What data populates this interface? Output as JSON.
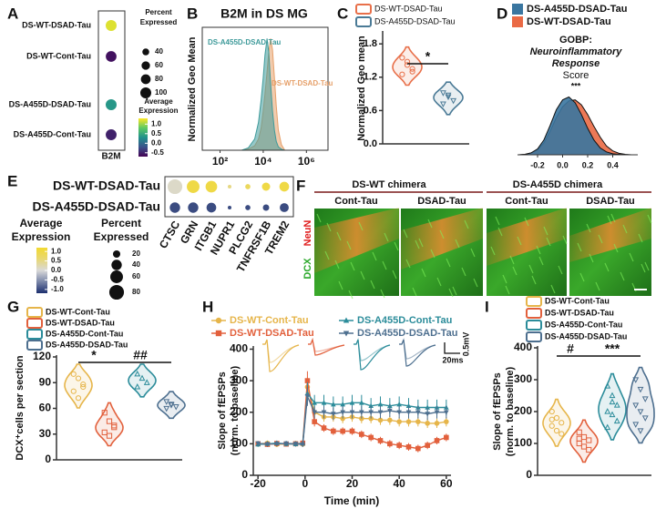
{
  "chart_data": [
    {
      "type": "dot",
      "label": "A",
      "rows": [
        "DS-WT-DSAD-Tau",
        "DS-WT-Cont-Tau",
        "DS-A455D-DSAD-Tau",
        "DS-A455D-Cont-Tau"
      ],
      "categories": [
        "B2M"
      ],
      "values": [
        [
          1.2
        ],
        [
          -0.6
        ],
        [
          0.35
        ],
        [
          -0.5
        ]
      ],
      "sizes": [
        [
          100
        ],
        [
          96
        ],
        [
          100
        ],
        [
          98
        ]
      ],
      "colorscale": [
        "#440154",
        "#3b528b",
        "#21918c",
        "#5ec962",
        "#fde725"
      ],
      "clim": [
        -0.7,
        1.3
      ],
      "color_title": [
        "Average",
        "Expression"
      ],
      "color_ticks": [
        {
          "value": 1,
          "label": "1.0"
        },
        0.5,
        {
          "value": 0,
          "label": "0.0"
        },
        -0.5
      ],
      "size_title": [
        "Percent",
        "Expressed"
      ],
      "size_ticks": [
        40,
        60,
        80,
        100
      ],
      "size_lim": [
        0,
        100
      ]
    },
    {
      "type": "area",
      "label": "B",
      "title": "B2M in DS MG",
      "ylabel": "Normalized Geo Mean",
      "log_x": true,
      "legend": "inside",
      "x": [
        1000,
        2000,
        4000,
        6000,
        8000,
        10000,
        12000,
        15000,
        18000,
        22000,
        27000,
        33000,
        40000,
        50000,
        70000,
        100000
      ],
      "xlim": [
        15,
        10000000
      ],
      "xticks": [
        {
          "value": 100,
          "label": "10²"
        },
        {
          "value": 10000,
          "label": "10⁴"
        },
        {
          "value": 1000000,
          "label": "10⁶"
        }
      ],
      "ylim": [
        0,
        110
      ],
      "series": [
        {
          "name": "DS-A455D-DSAD-Tau",
          "color": "#3e9a9a",
          "values": [
            0,
            2,
            10,
            25,
            45,
            65,
            85,
            100,
            88,
            60,
            35,
            18,
            8,
            3,
            1,
            0
          ]
        },
        {
          "name": "DS-WT-DSAD-Tau",
          "color": "#e6a06a",
          "values": [
            0,
            1,
            4,
            10,
            20,
            35,
            50,
            70,
            88,
            100,
            90,
            65,
            40,
            18,
            5,
            0
          ]
        }
      ]
    },
    {
      "type": "violin",
      "label": "C",
      "ylabel": "Normalized Geo mean",
      "ylim": [
        0,
        2
      ],
      "yticks": [
        {
          "value": 0,
          "label": "0.0"
        },
        0.6,
        1.2,
        1.8
      ],
      "annotations": [
        "*"
      ],
      "series": [
        {
          "name": "DS-WT-DSAD-Tau",
          "color": "#e8704a",
          "marker": "circle",
          "values": [
            1.55,
            1.42,
            1.3,
            1.25,
            1.48,
            1.35
          ]
        },
        {
          "name": "DS-A455D-DSAD-Tau",
          "color": "#4a7a96",
          "marker": "triangle-down",
          "values": [
            0.92,
            0.85,
            0.78,
            0.72,
            0.88
          ]
        }
      ]
    },
    {
      "type": "area",
      "label": "D",
      "title": [
        "GOBP:",
        "Neuroinflammatory",
        "Response"
      ],
      "subtitle": "Score",
      "annotations": [
        "***"
      ],
      "log_x": false,
      "legend": "top",
      "x": [
        -0.35,
        -0.3,
        -0.25,
        -0.2,
        -0.15,
        -0.1,
        -0.05,
        0,
        0.05,
        0.1,
        0.15,
        0.2,
        0.25,
        0.3,
        0.35,
        0.4,
        0.45,
        0.5,
        0.55
      ],
      "xlim": [
        -0.36,
        0.6
      ],
      "xticks": [
        -0.2,
        {
          "value": 0,
          "label": "0.0"
        },
        0.2,
        0.4
      ],
      "ylim": [
        0,
        6.5
      ],
      "series": [
        {
          "name": "DS-A455D-DSAD-Tau",
          "color": "#3a76a0",
          "values": [
            0,
            0.05,
            0.2,
            0.6,
            1.5,
            3.0,
            4.6,
            5.6,
            5.9,
            5.3,
            4.1,
            2.7,
            1.5,
            0.7,
            0.3,
            0.1,
            0.05,
            0,
            0
          ]
        },
        {
          "name": "DS-WT-DSAD-Tau",
          "color": "#ea6a45",
          "values": [
            0,
            0.05,
            0.2,
            0.5,
            1.2,
            2.4,
            3.8,
            4.9,
            5.5,
            5.6,
            5.1,
            4.1,
            2.9,
            1.8,
            0.9,
            0.4,
            0.15,
            0.05,
            0
          ]
        }
      ]
    },
    {
      "type": "dot",
      "label": "E",
      "rows": [
        "DS-WT-DSAD-Tau",
        "DS-A455D-DSAD-Tau"
      ],
      "categories": [
        "CTSC",
        "GRN",
        "ITGB1",
        "NUPR1",
        "PLCG2",
        "TNFRSF1B",
        "TREM2"
      ],
      "values": [
        [
          0.1,
          1.0,
          1.0,
          0.5,
          0.8,
          1.0,
          1.0
        ],
        [
          -1.0,
          -1.0,
          -1.0,
          -1.0,
          -1.0,
          -1.0,
          -1.0
        ]
      ],
      "sizes": [
        [
          80,
          60,
          50,
          5,
          10,
          25,
          35
        ],
        [
          40,
          40,
          35,
          5,
          10,
          15,
          30
        ]
      ],
      "colorscale": [
        "#1c2f6e",
        "#7a86a8",
        "#d9d9d9",
        "#e8d873",
        "#f2d930"
      ],
      "clim": [
        -1.2,
        1.2
      ],
      "color_title": [
        "Average",
        "Expression"
      ],
      "color_ticks": [
        {
          "value": 1,
          "label": "1.0"
        },
        0.5,
        {
          "value": 0,
          "label": "0.0"
        },
        -0.5,
        {
          "value": -1,
          "label": "-1.0"
        }
      ],
      "size_title": [
        "Percent",
        "Expressed"
      ],
      "size_ticks": [
        20,
        40,
        60,
        80
      ],
      "size_lim": [
        0,
        100
      ]
    },
    {
      "type": "violin",
      "label": "G",
      "ylabel": "DCX⁺cells per section",
      "ylim": [
        0,
        120
      ],
      "yticks": [
        0,
        30,
        60,
        90,
        120
      ],
      "annotations": [
        "*",
        "##"
      ],
      "series": [
        {
          "name": "DS-WT-Cont-Tau",
          "color": "#e6b54a",
          "marker": "circle",
          "values": [
            100,
            95,
            88,
            80,
            72,
            85
          ]
        },
        {
          "name": "DS-WT-DSAD-Tau",
          "color": "#e2603c",
          "marker": "square",
          "values": [
            55,
            45,
            38,
            32,
            28,
            40
          ]
        },
        {
          "name": "DS-A455D-Cont-Tau",
          "color": "#2b8c9a",
          "marker": "triangle-up",
          "values": [
            100,
            95,
            90,
            85
          ]
        },
        {
          "name": "DS-A455D-DSAD-Tau",
          "color": "#4d6f8f",
          "marker": "triangle-down",
          "values": [
            68,
            65,
            62,
            60,
            64
          ]
        }
      ]
    },
    {
      "type": "line",
      "label": "H",
      "ylabel": [
        "Slope of fEPSPs",
        "(norm. to baseline)"
      ],
      "xlabel": "Time (min)",
      "scalebar": [
        "0.5mV",
        "20ms"
      ],
      "x": [
        -20,
        -16,
        -12,
        -8,
        -4,
        -1,
        1,
        4,
        8,
        12,
        16,
        20,
        24,
        28,
        32,
        36,
        40,
        44,
        48,
        52,
        56,
        60
      ],
      "xlim": [
        -22,
        62
      ],
      "xticks": [
        -20,
        0,
        20,
        40,
        60
      ],
      "ylim": [
        0,
        410
      ],
      "yticks": [
        0,
        100,
        200,
        300,
        400
      ],
      "series": [
        {
          "name": "DS-WT-Cont-Tau",
          "color": "#e6b54a",
          "marker": "circle",
          "values": [
            100,
            102,
            98,
            100,
            101,
            99,
            280,
            200,
            185,
            185,
            180,
            185,
            180,
            180,
            175,
            175,
            170,
            170,
            170,
            165,
            165,
            170
          ],
          "errors": [
            8,
            8,
            8,
            8,
            8,
            8,
            30,
            15,
            15,
            15,
            15,
            15,
            15,
            15,
            15,
            15,
            15,
            15,
            15,
            15,
            15,
            15
          ]
        },
        {
          "name": "DS-WT-DSAD-Tau",
          "color": "#e2603c",
          "marker": "square",
          "values": [
            100,
            98,
            101,
            99,
            100,
            102,
            300,
            170,
            150,
            140,
            140,
            140,
            130,
            120,
            110,
            100,
            95,
            90,
            85,
            95,
            110,
            120
          ],
          "errors": [
            8,
            8,
            8,
            8,
            8,
            8,
            30,
            15,
            12,
            12,
            12,
            12,
            12,
            12,
            12,
            12,
            12,
            12,
            12,
            12,
            12,
            12
          ]
        },
        {
          "name": "DS-A455D-Cont-Tau",
          "color": "#2b8c9a",
          "marker": "triangle-up",
          "values": [
            98,
            100,
            102,
            100,
            99,
            101,
            260,
            230,
            230,
            225,
            225,
            230,
            230,
            220,
            225,
            220,
            225,
            220,
            215,
            215,
            215,
            215
          ],
          "errors": [
            8,
            8,
            8,
            8,
            8,
            8,
            35,
            25,
            25,
            25,
            25,
            25,
            25,
            25,
            25,
            25,
            25,
            25,
            25,
            25,
            25,
            25
          ]
        },
        {
          "name": "DS-A455D-DSAD-Tau",
          "color": "#4d6f8f",
          "marker": "triangle-down",
          "values": [
            101,
            99,
            100,
            101,
            100,
            98,
            250,
            200,
            200,
            195,
            200,
            200,
            200,
            200,
            200,
            205,
            200,
            200,
            200,
            195,
            200,
            200
          ],
          "errors": [
            8,
            8,
            8,
            8,
            8,
            8,
            30,
            20,
            20,
            20,
            20,
            20,
            20,
            20,
            20,
            20,
            20,
            20,
            20,
            20,
            20,
            20
          ]
        }
      ]
    },
    {
      "type": "violin",
      "label": "I",
      "ylabel": [
        "Slope of fEPSPs",
        "(norm. to baseline)"
      ],
      "ylim": [
        0,
        400
      ],
      "yticks": [
        0,
        100,
        200,
        300,
        400
      ],
      "annotations": [
        "#",
        "***"
      ],
      "series": [
        {
          "name": "DS-WT-Cont-Tau",
          "color": "#e6b54a",
          "marker": "circle",
          "values": [
            200,
            180,
            165,
            155,
            140,
            130,
            175
          ]
        },
        {
          "name": "DS-WT-DSAD-Tau",
          "color": "#e2603c",
          "marker": "square",
          "values": [
            135,
            120,
            110,
            100,
            90,
            80,
            115
          ]
        },
        {
          "name": "DS-A455D-Cont-Tau",
          "color": "#2b8c9a",
          "marker": "triangle-up",
          "values": [
            280,
            250,
            220,
            200,
            190,
            170,
            150,
            230
          ]
        },
        {
          "name": "DS-A455D-DSAD-Tau",
          "color": "#4d6f8f",
          "marker": "triangle-down",
          "values": [
            300,
            270,
            240,
            220,
            200,
            180,
            160,
            140
          ]
        }
      ]
    }
  ],
  "image_panel": {
    "label": "F",
    "groups": [
      "DS-WT chimera",
      "DS-A455D chimera"
    ],
    "columns": [
      "Cont-Tau",
      "DSAD-Tau",
      "Cont-Tau",
      "DSAD-Tau"
    ],
    "stains": [
      "DCX",
      "NeuN"
    ]
  }
}
